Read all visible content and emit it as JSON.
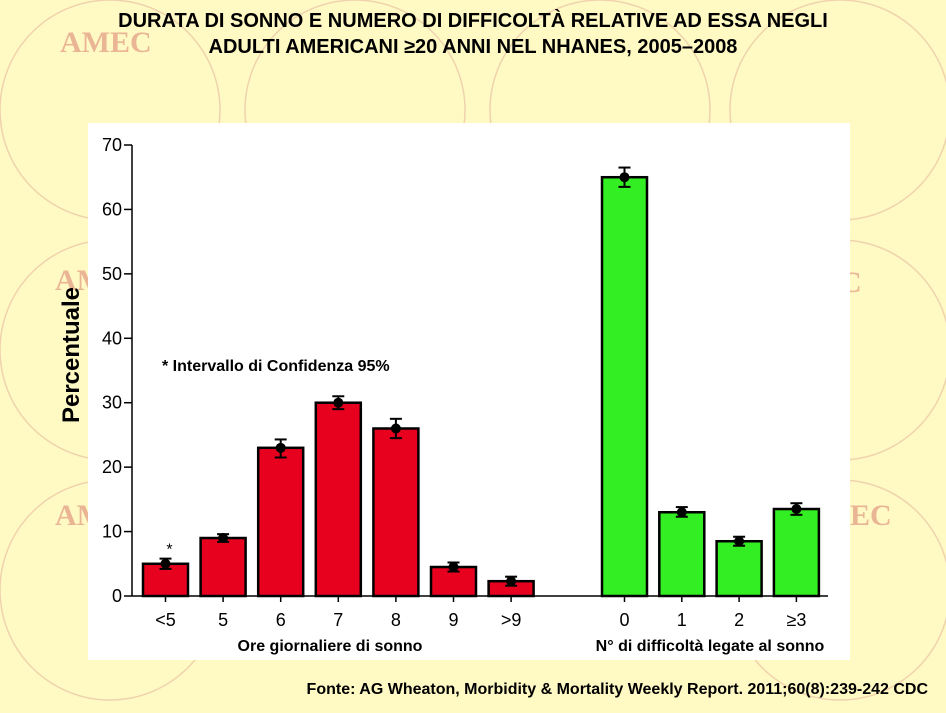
{
  "title": {
    "line1": "DURATA DI SONNO E NUMERO DI  DIFFICOLTÀ RELATIVE AD ESSA NEGLI",
    "line2": "ADULTI AMERICANI ≥20 ANNI NEL NHANES, 2005–2008"
  },
  "watermark_text": "AMEC",
  "note": "* Intervallo di Confidenza 95%",
  "source": "Fonte: AG Wheaton, Morbidity & Mortality Weekly Report. 2011;60(8):239-242 CDC",
  "colors": {
    "sleep_bars": "#e8001f",
    "difficulty_bars": "#33ee22",
    "background": "#fff9c4",
    "watermark": "#d9926b"
  },
  "chart_data": {
    "type": "bar",
    "ylabel": "Percentuale",
    "ylim": [
      0,
      70
    ],
    "yticks": [
      0,
      10,
      20,
      30,
      40,
      50,
      60,
      70
    ],
    "grid": false,
    "groups": [
      {
        "xlabel": "Ore giornaliere di sonno",
        "categories": [
          "<5",
          "5",
          "6",
          "7",
          "8",
          "9",
          ">9"
        ],
        "values": [
          5,
          9,
          23,
          30,
          26,
          4.5,
          2.3
        ],
        "ci_low": [
          4.2,
          8.4,
          21.5,
          29,
          24.5,
          3.8,
          1.6
        ],
        "ci_high": [
          5.8,
          9.6,
          24.3,
          31,
          27.5,
          5.2,
          3
        ],
        "color": "#e8001f",
        "asterisk_on": "<5"
      },
      {
        "xlabel": "N° di difficoltà legate al sonno",
        "categories": [
          "0",
          "1",
          "2",
          "≥3"
        ],
        "values": [
          65,
          13,
          8.5,
          13.5
        ],
        "ci_low": [
          63.5,
          12.3,
          7.8,
          12.6
        ],
        "ci_high": [
          66.5,
          13.8,
          9.2,
          14.4
        ],
        "color": "#33ee22"
      }
    ]
  }
}
